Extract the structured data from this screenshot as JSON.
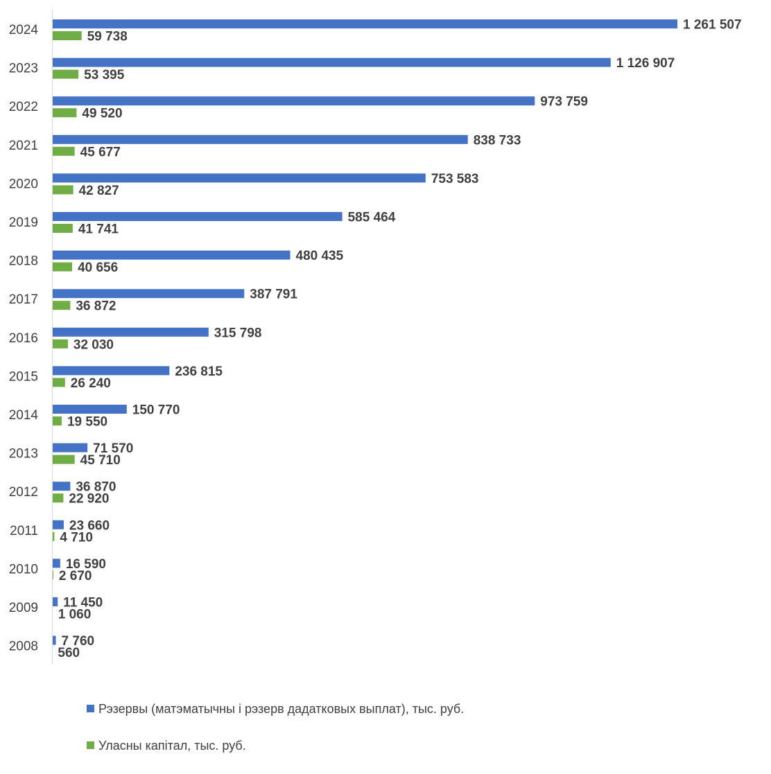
{
  "chart_data": {
    "type": "bar",
    "orientation": "horizontal",
    "categories": [
      "2024",
      "2023",
      "2022",
      "2021",
      "2020",
      "2019",
      "2018",
      "2017",
      "2016",
      "2015",
      "2014",
      "2013",
      "2012",
      "2011",
      "2010",
      "2009",
      "2008"
    ],
    "series": [
      {
        "name": "Рэзервы (матэматычны і рэзерв дадатковых выплат), тыс. руб.",
        "color": "#4472c4",
        "values": [
          1261507,
          1126907,
          973759,
          838733,
          753583,
          585464,
          480435,
          387791,
          315798,
          236815,
          150770,
          71570,
          36870,
          23660,
          16590,
          11450,
          7760
        ],
        "labels": [
          "1 261 507",
          "1 126 907",
          "973 759",
          "838 733",
          "753 583",
          "585 464",
          "480 435",
          "387 791",
          "315 798",
          "236 815",
          "150 770",
          "71 570",
          "36 870",
          "23 660",
          "16 590",
          "11 450",
          "7 760"
        ]
      },
      {
        "name": "Уласны капітал, тыс. руб.",
        "color": "#70ad47",
        "values": [
          59738,
          53395,
          49520,
          45677,
          42827,
          41741,
          40656,
          36872,
          32030,
          26240,
          19550,
          45710,
          22920,
          4710,
          2670,
          1060,
          560
        ],
        "labels": [
          "59 738",
          "53 395",
          "49 520",
          "45 677",
          "42 827",
          "41 741",
          "40 656",
          "36 872",
          "32 030",
          "26 240",
          "19 550",
          "45 710",
          "22 920",
          "4 710",
          "2 670",
          "1 060",
          "560"
        ]
      }
    ],
    "xlim": [
      0,
      1261507
    ],
    "grid": false,
    "legend_position": "bottom-left"
  }
}
